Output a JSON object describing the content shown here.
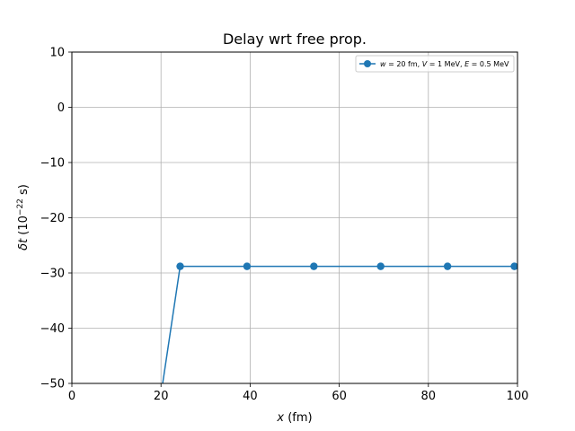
{
  "chart_data": {
    "type": "line",
    "title": "Delay wrt free prop.",
    "xlabel_var": "x",
    "xlabel_unit": " (fm)",
    "ylabel_var": "δt",
    "ylabel_pre": " (10",
    "ylabel_exp": "−22",
    "ylabel_post": " s)",
    "xlim": [
      0,
      100
    ],
    "ylim": [
      -50,
      10
    ],
    "xticks": [
      0,
      20,
      40,
      60,
      80,
      100
    ],
    "yticks": [
      10,
      0,
      -10,
      -20,
      -30,
      -40,
      -50
    ],
    "grid": true,
    "legend_position": "top-right",
    "series": [
      {
        "name": "w = 20 fm, V = 1 MeV, E = 0.5 MeV",
        "color": "#1f77b4",
        "marker": "circle",
        "x": [
          19.0,
          24.3,
          39.3,
          54.3,
          69.3,
          84.3,
          99.3
        ],
        "y": [
          -57.5,
          -28.8,
          -28.8,
          -28.8,
          -28.8,
          -28.8,
          -28.8
        ]
      }
    ],
    "legend_label_parts": {
      "w": "w",
      "w_val": " = 20 fm, ",
      "V": "V",
      "V_val": " = 1 MeV, ",
      "E": "E",
      "E_val": " = 0.5 MeV"
    }
  }
}
